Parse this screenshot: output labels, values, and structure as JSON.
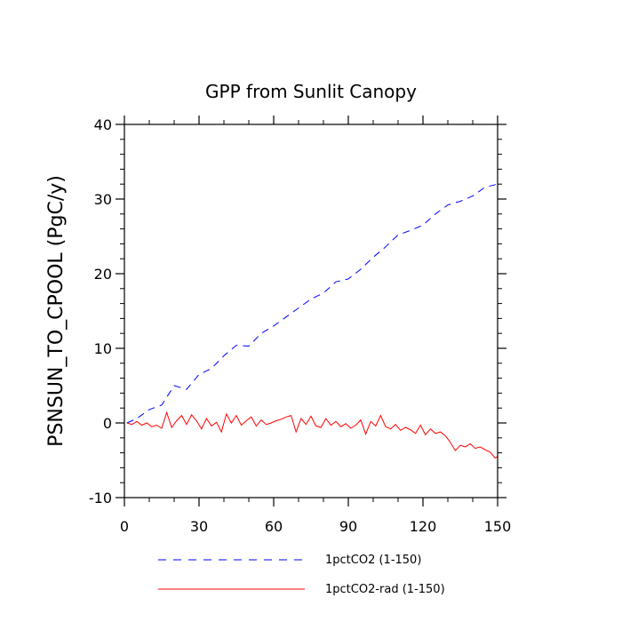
{
  "chart_data": {
    "type": "line",
    "title": "GPP from Sunlit Canopy",
    "xlabel": "",
    "ylabel": "PSNSUN_TO_CPOOL  (PgC/y)",
    "xlim": [
      0,
      150
    ],
    "ylim": [
      -10,
      40
    ],
    "x_ticks": [
      0,
      30,
      60,
      90,
      120,
      150
    ],
    "y_ticks": [
      -10,
      0,
      10,
      20,
      30,
      40
    ],
    "grid": false,
    "legend_position": "bottom",
    "series": [
      {
        "name": "1pctCO2 (1-150)",
        "color": "#0000ff",
        "dash": "dashed",
        "x": [
          1,
          5,
          10,
          15,
          20,
          25,
          30,
          35,
          40,
          45,
          50,
          55,
          60,
          65,
          70,
          75,
          80,
          85,
          90,
          95,
          100,
          105,
          110,
          115,
          120,
          125,
          130,
          135,
          140,
          145,
          150
        ],
        "y": [
          0,
          0.6,
          1.8,
          2.4,
          5.0,
          4.5,
          6.5,
          7.3,
          9.0,
          10.4,
          10.3,
          12.0,
          13.0,
          14.2,
          15.4,
          16.6,
          17.4,
          18.9,
          19.3,
          20.6,
          22.2,
          23.6,
          25.2,
          25.8,
          26.5,
          28.0,
          29.2,
          29.7,
          30.4,
          31.6,
          32.0
        ]
      },
      {
        "name": "1pctCO2-rad (1-150)",
        "color": "#ff0000",
        "dash": "solid",
        "x": [
          1,
          3,
          5,
          7,
          9,
          11,
          13,
          15,
          17,
          19,
          21,
          23,
          25,
          27,
          29,
          31,
          33,
          35,
          37,
          39,
          41,
          43,
          45,
          47,
          49,
          51,
          53,
          55,
          57,
          59,
          61,
          63,
          65,
          67,
          69,
          71,
          73,
          75,
          77,
          79,
          81,
          83,
          85,
          87,
          89,
          91,
          93,
          95,
          97,
          99,
          101,
          103,
          105,
          107,
          109,
          111,
          113,
          115,
          117,
          119,
          121,
          123,
          125,
          127,
          129,
          131,
          133,
          135,
          137,
          139,
          141,
          143,
          145,
          147,
          149,
          150
        ],
        "y": [
          0,
          -0.2,
          0.2,
          -0.3,
          0.0,
          -0.5,
          -0.3,
          -0.7,
          1.4,
          -0.6,
          0.3,
          1.0,
          -0.2,
          1.1,
          0.3,
          -0.8,
          0.6,
          -0.4,
          0.1,
          -1.2,
          1.2,
          0.0,
          1.0,
          -0.3,
          0.3,
          0.8,
          -0.4,
          0.4,
          -0.2,
          0.0,
          0.3,
          0.5,
          0.8,
          1.0,
          -1.2,
          0.6,
          -0.2,
          0.9,
          -0.4,
          -0.6,
          0.6,
          -0.3,
          0.2,
          -0.5,
          -0.1,
          -0.7,
          -0.3,
          0.4,
          -1.5,
          0.2,
          -0.4,
          1.0,
          -0.5,
          -0.8,
          -0.2,
          -1.0,
          -0.6,
          -0.9,
          -1.4,
          -0.3,
          -1.6,
          -0.8,
          -1.4,
          -1.2,
          -1.7,
          -2.6,
          -3.7,
          -3.0,
          -3.2,
          -2.8,
          -3.4,
          -3.2,
          -3.6,
          -3.9,
          -4.7,
          -4.5
        ]
      }
    ]
  }
}
